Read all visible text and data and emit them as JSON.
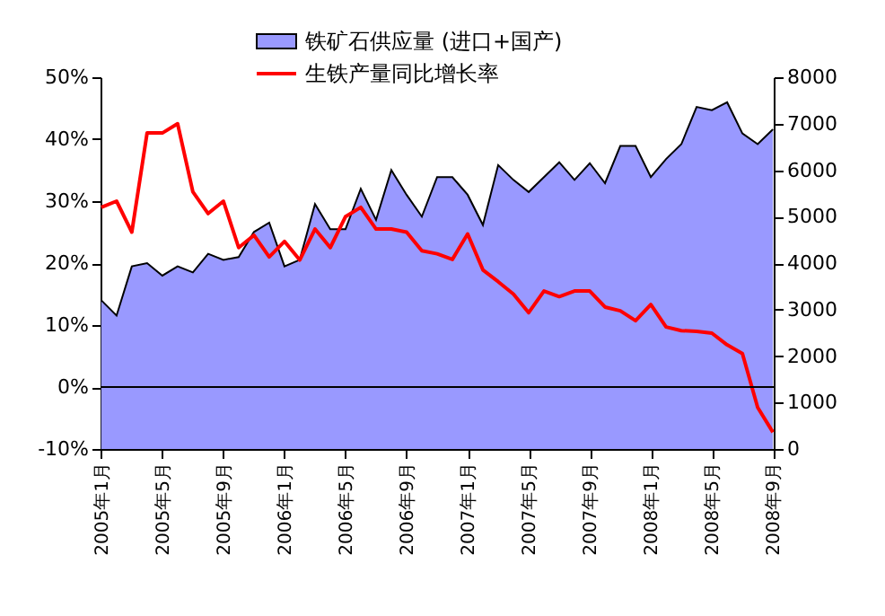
{
  "chart_data": {
    "type": "line",
    "categories": [
      "2005年1月",
      null,
      null,
      null,
      "2005年5月",
      null,
      null,
      null,
      "2005年9月",
      null,
      null,
      null,
      "2006年1月",
      null,
      null,
      null,
      "2006年5月",
      null,
      null,
      null,
      "2006年9月",
      null,
      null,
      null,
      "2007年1月",
      null,
      null,
      null,
      "2007年5月",
      null,
      null,
      null,
      "2007年9月",
      null,
      null,
      null,
      "2008年1月",
      null,
      null,
      null,
      "2008年5月",
      null,
      null,
      null,
      "2008年9月"
    ],
    "series": [
      {
        "name": "铁矿石供应量 (进口+国产)",
        "type": "area",
        "axis": "y2",
        "color": "#9999ff",
        "values": [
          3200,
          2870,
          3930,
          4000,
          3730,
          3930,
          3800,
          4200,
          4070,
          4130,
          4670,
          4870,
          3930,
          4070,
          5270,
          4730,
          4730,
          5600,
          4930,
          6000,
          5470,
          5000,
          5850,
          5850,
          5470,
          4820,
          6110,
          5790,
          5530,
          5850,
          6170,
          5790,
          6150,
          5720,
          6520,
          6520,
          5850,
          6240,
          6560,
          7360,
          7290,
          7460,
          6790,
          6560,
          6880
        ]
      },
      {
        "name": "生铁产量同比增长率",
        "type": "line",
        "axis": "y",
        "color": "#ff0000",
        "values": [
          29,
          30,
          25,
          41,
          41,
          42.5,
          31.5,
          28,
          30,
          22.5,
          24.5,
          21,
          23.5,
          20.5,
          25.5,
          22.5,
          27.5,
          29,
          25.5,
          25.5,
          25,
          22,
          21.5,
          20.6,
          24.7,
          18.9,
          17,
          15,
          12,
          15.5,
          14.6,
          15.5,
          15.5,
          12.9,
          12.3,
          10.7,
          13.3,
          9.7,
          9.1,
          9,
          8.7,
          6.8,
          5.4,
          -3.3,
          -7.3
        ]
      }
    ],
    "ylim": [
      -10,
      50
    ],
    "yticks": [
      {
        "value": -10,
        "label": "-10%"
      },
      {
        "value": 0,
        "label": "0%"
      },
      {
        "value": 10,
        "label": "10%"
      },
      {
        "value": 20,
        "label": "20%"
      },
      {
        "value": 30,
        "label": "30%"
      },
      {
        "value": 40,
        "label": "40%"
      },
      {
        "value": 50,
        "label": "50%"
      }
    ],
    "y2lim": [
      0,
      8000
    ],
    "y2ticks": [
      0,
      1000,
      2000,
      3000,
      4000,
      5000,
      6000,
      7000,
      8000
    ],
    "ref_lines": [
      {
        "axis": "y",
        "value": 0,
        "color": "#000000"
      }
    ],
    "grid": false,
    "legend": "top",
    "marker": "none",
    "line_style": "solid"
  }
}
